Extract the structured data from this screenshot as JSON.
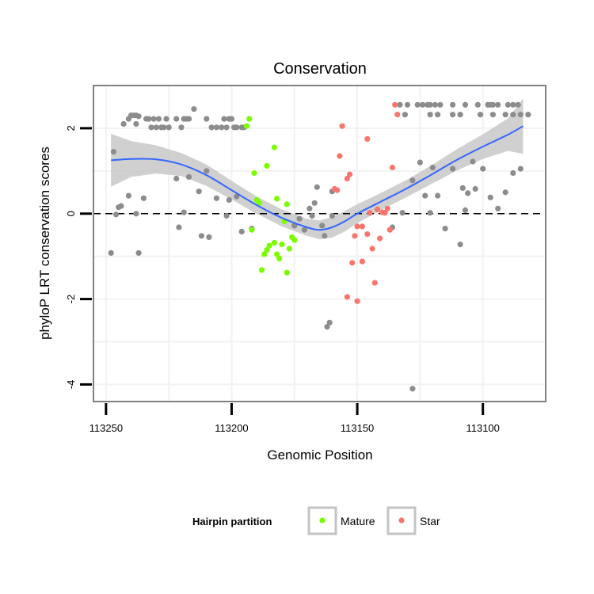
{
  "chart_data": {
    "type": "scatter",
    "title": "Conservation",
    "xlabel": "Genomic Position",
    "ylabel": "phyloP LRT conservation scores",
    "x_reversed": true,
    "xlim": [
      113255,
      113075
    ],
    "ylim": [
      -4.4,
      3.0
    ],
    "x_ticks": [
      113250,
      113200,
      113150,
      113100
    ],
    "x_tick_labels": [
      "113250",
      "113200",
      "113150",
      "113100"
    ],
    "y_ticks": [
      2,
      0,
      -2,
      -4
    ],
    "y_tick_labels": [
      "2",
      "0",
      "-2",
      "-4"
    ],
    "grid": true,
    "reference_line": {
      "y": 0,
      "style": "dashed"
    },
    "legend": {
      "title": "Hairpin partition",
      "position": "bottom",
      "entries": [
        {
          "label": "Mature",
          "color": "#7CFC00"
        },
        {
          "label": "Star",
          "color": "#F8766D"
        }
      ]
    },
    "series": [
      {
        "name": "Other",
        "color": "#8c8c8c",
        "points": [
          [
            113241,
            2.22
          ],
          [
            113240,
            2.3
          ],
          [
            113239,
            2.3
          ],
          [
            113238,
            2.3
          ],
          [
            113237,
            2.28
          ],
          [
            113238,
            2.1
          ],
          [
            113243,
            2.1
          ],
          [
            113234,
            2.22
          ],
          [
            113233,
            2.22
          ],
          [
            113231,
            2.22
          ],
          [
            113229,
            2.22
          ],
          [
            113226,
            2.22
          ],
          [
            113222,
            2.22
          ],
          [
            113219,
            2.22
          ],
          [
            113218,
            2.22
          ],
          [
            113217,
            2.22
          ],
          [
            113210,
            2.22
          ],
          [
            113203,
            2.22
          ],
          [
            113201,
            2.22
          ],
          [
            113200,
            2.22
          ],
          [
            113232,
            2.02
          ],
          [
            113230,
            2.02
          ],
          [
            113228,
            2.02
          ],
          [
            113227,
            2.02
          ],
          [
            113225,
            2.02
          ],
          [
            113220,
            2.02
          ],
          [
            113208,
            2.02
          ],
          [
            113206,
            2.02
          ],
          [
            113204,
            2.02
          ],
          [
            113202,
            2.02
          ],
          [
            113199,
            2.02
          ],
          [
            113198,
            2.02
          ],
          [
            113196,
            2.02
          ],
          [
            113195,
            2.02
          ],
          [
            113215,
            2.45
          ],
          [
            113133,
            2.55
          ],
          [
            113130,
            2.55
          ],
          [
            113126,
            2.55
          ],
          [
            113124,
            2.55
          ],
          [
            113122,
            2.55
          ],
          [
            113121,
            2.55
          ],
          [
            113119,
            2.55
          ],
          [
            113117,
            2.55
          ],
          [
            113112,
            2.55
          ],
          [
            113107,
            2.55
          ],
          [
            113102,
            2.55
          ],
          [
            113098,
            2.55
          ],
          [
            113097,
            2.55
          ],
          [
            113096,
            2.55
          ],
          [
            113094,
            2.55
          ],
          [
            113090,
            2.55
          ],
          [
            113088,
            2.55
          ],
          [
            113086,
            2.55
          ],
          [
            113131,
            2.32
          ],
          [
            113121,
            2.32
          ],
          [
            113118,
            2.32
          ],
          [
            113112,
            2.32
          ],
          [
            113109,
            2.32
          ],
          [
            113101,
            2.32
          ],
          [
            113096,
            2.32
          ],
          [
            113091,
            2.32
          ],
          [
            113088,
            2.32
          ],
          [
            113085,
            2.32
          ],
          [
            113082,
            2.32
          ],
          [
            113247,
            1.45
          ],
          [
            113244,
            0.18
          ],
          [
            113245,
            0.15
          ],
          [
            113241,
            0.42
          ],
          [
            113235,
            0.36
          ],
          [
            113222,
            0.82
          ],
          [
            113217,
            0.86
          ],
          [
            113210,
            1.0
          ],
          [
            113206,
            0.36
          ],
          [
            113201,
            0.32
          ],
          [
            113198,
            0.4
          ],
          [
            113221,
            -0.32
          ],
          [
            113212,
            -0.52
          ],
          [
            113209,
            -0.55
          ],
          [
            113196,
            -0.42
          ],
          [
            113192,
            -0.35
          ],
          [
            113219,
            0.03
          ],
          [
            113213,
            0.52
          ],
          [
            113248,
            -0.92
          ],
          [
            113237,
            -0.92
          ],
          [
            113246,
            -0.02
          ],
          [
            113238,
            0.0
          ],
          [
            113202,
            -0.05
          ],
          [
            113175,
            -0.28
          ],
          [
            113173,
            -0.12
          ],
          [
            113171,
            -0.38
          ],
          [
            113169,
            0.12
          ],
          [
            113167,
            0.25
          ],
          [
            113166,
            0.62
          ],
          [
            113168,
            -0.05
          ],
          [
            113164,
            -0.28
          ],
          [
            113163,
            -0.52
          ],
          [
            113160,
            -0.05
          ],
          [
            113160,
            0.52
          ],
          [
            113162,
            -2.65
          ],
          [
            113161,
            -2.55
          ],
          [
            113136,
            -0.32
          ],
          [
            113132,
            0.02
          ],
          [
            113128,
            0.78
          ],
          [
            113125,
            1.2
          ],
          [
            113120,
            1.08
          ],
          [
            113123,
            0.42
          ],
          [
            113118,
            0.42
          ],
          [
            113115,
            -0.35
          ],
          [
            113112,
            1.05
          ],
          [
            113108,
            0.6
          ],
          [
            113106,
            0.48
          ],
          [
            113104,
            1.22
          ],
          [
            113103,
            0.58
          ],
          [
            113100,
            1.05
          ],
          [
            113097,
            0.38
          ],
          [
            113094,
            0.12
          ],
          [
            113091,
            0.5
          ],
          [
            113088,
            0.95
          ],
          [
            113085,
            1.05
          ],
          [
            113107,
            0.08
          ],
          [
            113121,
            0.02
          ],
          [
            113128,
            -4.1
          ],
          [
            113109,
            -0.72
          ]
        ]
      },
      {
        "name": "Mature",
        "color": "#7CFC00",
        "points": [
          [
            113193,
            2.22
          ],
          [
            113194,
            2.05
          ],
          [
            113191,
            0.95
          ],
          [
            113186,
            1.12
          ],
          [
            113183,
            1.55
          ],
          [
            113190,
            0.32
          ],
          [
            113189,
            0.25
          ],
          [
            113182,
            0.35
          ],
          [
            113178,
            0.22
          ],
          [
            113179,
            -0.18
          ],
          [
            113192,
            -0.38
          ],
          [
            113186,
            -0.85
          ],
          [
            113185,
            -0.75
          ],
          [
            113183,
            -0.68
          ],
          [
            113182,
            -0.95
          ],
          [
            113181,
            -1.05
          ],
          [
            113180,
            -0.72
          ],
          [
            113177,
            -0.82
          ],
          [
            113176,
            -0.55
          ],
          [
            113178,
            -1.38
          ],
          [
            113188,
            -1.32
          ],
          [
            113187,
            -0.95
          ],
          [
            113175,
            -0.62
          ]
        ]
      },
      {
        "name": "Star",
        "color": "#F8766D",
        "points": [
          [
            113156,
            2.05
          ],
          [
            113153,
            0.92
          ],
          [
            113154,
            0.82
          ],
          [
            113157,
            1.35
          ],
          [
            113146,
            1.75
          ],
          [
            113136,
            1.08
          ],
          [
            113158,
            0.55
          ],
          [
            113159,
            0.58
          ],
          [
            113134,
            2.32
          ],
          [
            113135,
            2.55
          ],
          [
            113145,
            0.02
          ],
          [
            113142,
            0.1
          ],
          [
            113140,
            0.03
          ],
          [
            113139,
            0.02
          ],
          [
            113138,
            0.12
          ],
          [
            113150,
            -0.3
          ],
          [
            113148,
            -0.3
          ],
          [
            113146,
            -0.48
          ],
          [
            113144,
            -0.82
          ],
          [
            113141,
            -0.58
          ],
          [
            113137,
            -0.38
          ],
          [
            113151,
            -0.52
          ],
          [
            113152,
            -1.15
          ],
          [
            113148,
            -1.12
          ],
          [
            113143,
            -1.62
          ],
          [
            113154,
            -1.95
          ],
          [
            113150,
            -2.05
          ]
        ]
      }
    ],
    "smooth_fit": {
      "method": "loess",
      "color": "#3366FF",
      "band_color": "#c8c8c8",
      "points": [
        [
          113248,
          1.25,
          0.62
        ],
        [
          113240,
          1.28,
          0.42
        ],
        [
          113230,
          1.27,
          0.33
        ],
        [
          113220,
          1.15,
          0.27
        ],
        [
          113210,
          0.9,
          0.25
        ],
        [
          113200,
          0.55,
          0.22
        ],
        [
          113190,
          0.2,
          0.2
        ],
        [
          113180,
          -0.1,
          0.2
        ],
        [
          113170,
          -0.32,
          0.2
        ],
        [
          113165,
          -0.38,
          0.22
        ],
        [
          113160,
          -0.32,
          0.24
        ],
        [
          113155,
          -0.18,
          0.24
        ],
        [
          113150,
          0.0,
          0.22
        ],
        [
          113140,
          0.3,
          0.2
        ],
        [
          113130,
          0.6,
          0.2
        ],
        [
          113120,
          0.93,
          0.22
        ],
        [
          113110,
          1.27,
          0.25
        ],
        [
          113100,
          1.57,
          0.29
        ],
        [
          113090,
          1.85,
          0.38
        ],
        [
          113084,
          2.05,
          0.65
        ]
      ]
    }
  }
}
